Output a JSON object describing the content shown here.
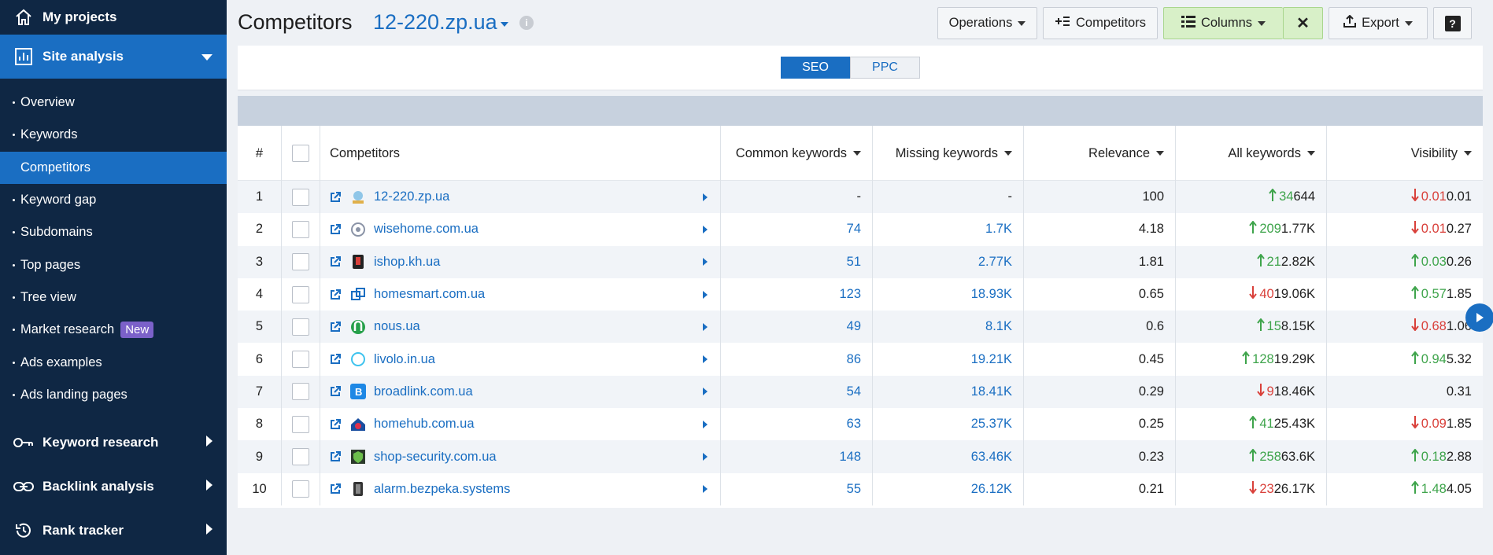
{
  "sidebar": {
    "my_projects": "My projects",
    "site_analysis": "Site analysis",
    "items": [
      {
        "label": "Overview"
      },
      {
        "label": "Keywords"
      },
      {
        "label": "Competitors"
      },
      {
        "label": "Keyword gap"
      },
      {
        "label": "Subdomains"
      },
      {
        "label": "Top pages"
      },
      {
        "label": "Tree view"
      },
      {
        "label": "Market research",
        "badge": "New"
      },
      {
        "label": "Ads examples"
      },
      {
        "label": "Ads landing pages"
      }
    ],
    "keyword_research": "Keyword research",
    "backlink_analysis": "Backlink analysis",
    "rank_tracker": "Rank tracker"
  },
  "header": {
    "title": "Competitors",
    "domain": "12-220.zp.ua",
    "info": "i",
    "operations": "Operations",
    "competitors_btn": "Competitors",
    "columns": "Columns",
    "close": "✕",
    "export": "Export",
    "help": "?"
  },
  "toggle": {
    "seo": "SEO",
    "ppc": "PPC"
  },
  "table": {
    "headers": {
      "num": "#",
      "competitors": "Competitors",
      "common": "Common keywords",
      "missing": "Missing keywords",
      "relevance": "Relevance",
      "all": "All keywords",
      "visibility": "Visibility"
    },
    "rows": [
      {
        "n": "1",
        "domain": "12-220.zp.ua",
        "common": "-",
        "missing": "-",
        "relevance": "100",
        "all_delta": "34",
        "all_dir": "up",
        "all": "644",
        "vis_delta": "0.01",
        "vis_dir": "down",
        "vis": "0.01"
      },
      {
        "n": "2",
        "domain": "wisehome.com.ua",
        "common": "74",
        "missing": "1.7K",
        "relevance": "4.18",
        "all_delta": "209",
        "all_dir": "up",
        "all": "1.77K",
        "vis_delta": "0.01",
        "vis_dir": "down",
        "vis": "0.27"
      },
      {
        "n": "3",
        "domain": "ishop.kh.ua",
        "common": "51",
        "missing": "2.77K",
        "relevance": "1.81",
        "all_delta": "21",
        "all_dir": "up",
        "all": "2.82K",
        "vis_delta": "0.03",
        "vis_dir": "up",
        "vis": "0.26"
      },
      {
        "n": "4",
        "domain": "homesmart.com.ua",
        "common": "123",
        "missing": "18.93K",
        "relevance": "0.65",
        "all_delta": "40",
        "all_dir": "down",
        "all": "19.06K",
        "vis_delta": "0.57",
        "vis_dir": "up",
        "vis": "1.85"
      },
      {
        "n": "5",
        "domain": "nous.ua",
        "common": "49",
        "missing": "8.1K",
        "relevance": "0.6",
        "all_delta": "15",
        "all_dir": "up",
        "all": "8.15K",
        "vis_delta": "0.68",
        "vis_dir": "down",
        "vis": "1.06"
      },
      {
        "n": "6",
        "domain": "livolo.in.ua",
        "common": "86",
        "missing": "19.21K",
        "relevance": "0.45",
        "all_delta": "128",
        "all_dir": "up",
        "all": "19.29K",
        "vis_delta": "0.94",
        "vis_dir": "up",
        "vis": "5.32"
      },
      {
        "n": "7",
        "domain": "broadlink.com.ua",
        "common": "54",
        "missing": "18.41K",
        "relevance": "0.29",
        "all_delta": "9",
        "all_dir": "down",
        "all": "18.46K",
        "vis_delta": "",
        "vis_dir": "",
        "vis": "0.31"
      },
      {
        "n": "8",
        "domain": "homehub.com.ua",
        "common": "63",
        "missing": "25.37K",
        "relevance": "0.25",
        "all_delta": "41",
        "all_dir": "up",
        "all": "25.43K",
        "vis_delta": "0.09",
        "vis_dir": "down",
        "vis": "1.85"
      },
      {
        "n": "9",
        "domain": "shop-security.com.ua",
        "common": "148",
        "missing": "63.46K",
        "relevance": "0.23",
        "all_delta": "258",
        "all_dir": "up",
        "all": "63.6K",
        "vis_delta": "0.18",
        "vis_dir": "up",
        "vis": "2.88"
      },
      {
        "n": "10",
        "domain": "alarm.bezpeka.systems",
        "common": "55",
        "missing": "26.12K",
        "relevance": "0.21",
        "all_delta": "23",
        "all_dir": "down",
        "all": "26.17K",
        "vis_delta": "1.48",
        "vis_dir": "up",
        "vis": "4.05"
      }
    ]
  },
  "colors": {
    "sidebar": "#0f2744",
    "accent": "#1a6ec2",
    "up": "#3ea44b",
    "down": "#d9403a"
  },
  "favicons": [
    "logo-icon",
    "globe-icon",
    "lock-icon",
    "squares-icon",
    "n-icon",
    "ring-icon",
    "b-icon",
    "house-icon",
    "shield-icon",
    "device-icon"
  ]
}
